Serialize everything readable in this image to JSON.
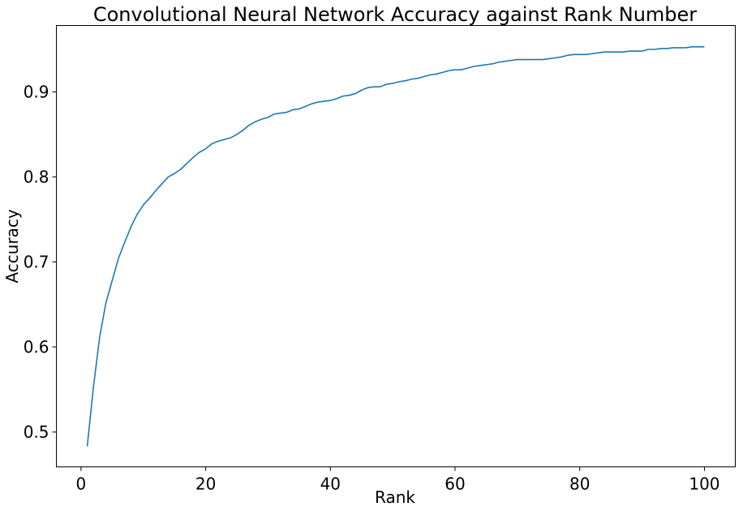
{
  "chart_data": {
    "type": "line",
    "title": "Convolutional Neural Network Accuracy against Rank Number",
    "xlabel": "Rank",
    "ylabel": "Accuracy",
    "xlim": [
      -3.95,
      104.95
    ],
    "ylim": [
      0.4589,
      0.9781
    ],
    "xticks": [
      0,
      20,
      40,
      60,
      80,
      100
    ],
    "yticks": [
      0.5,
      0.6,
      0.7,
      0.8,
      0.9
    ],
    "ytick_labels": [
      "0.5",
      "0.6",
      "0.7",
      "0.8",
      "0.9"
    ],
    "xtick_labels": [
      "0",
      "20",
      "40",
      "60",
      "80",
      "100"
    ],
    "grid": false,
    "line_color": "#1f77b4",
    "series": [
      {
        "x": [
          1,
          2,
          3,
          4,
          5,
          6,
          7,
          8,
          9,
          10,
          11,
          12,
          13,
          14,
          15,
          16,
          17,
          18,
          19,
          20,
          21,
          22,
          23,
          24,
          25,
          26,
          27,
          28,
          29,
          30,
          31,
          32,
          33,
          34,
          35,
          36,
          37,
          38,
          39,
          40,
          41,
          42,
          43,
          44,
          45,
          46,
          47,
          48,
          49,
          50,
          51,
          52,
          53,
          54,
          55,
          56,
          57,
          58,
          59,
          60,
          61,
          62,
          63,
          64,
          65,
          66,
          67,
          68,
          69,
          70,
          71,
          72,
          73,
          74,
          75,
          76,
          77,
          78,
          79,
          80,
          81,
          82,
          83,
          84,
          85,
          86,
          87,
          88,
          89,
          90,
          91,
          92,
          93,
          94,
          95,
          96,
          97,
          98,
          99,
          100
        ],
        "values": [
          0.483,
          0.553,
          0.612,
          0.652,
          0.678,
          0.704,
          0.723,
          0.741,
          0.756,
          0.767,
          0.775,
          0.784,
          0.792,
          0.8,
          0.804,
          0.809,
          0.816,
          0.823,
          0.829,
          0.833,
          0.839,
          0.842,
          0.844,
          0.846,
          0.85,
          0.855,
          0.861,
          0.865,
          0.868,
          0.87,
          0.874,
          0.875,
          0.876,
          0.879,
          0.88,
          0.883,
          0.886,
          0.888,
          0.889,
          0.89,
          0.892,
          0.895,
          0.896,
          0.898,
          0.902,
          0.905,
          0.906,
          0.906,
          0.909,
          0.91,
          0.912,
          0.913,
          0.915,
          0.916,
          0.918,
          0.92,
          0.921,
          0.923,
          0.925,
          0.926,
          0.926,
          0.928,
          0.93,
          0.931,
          0.932,
          0.933,
          0.935,
          0.936,
          0.937,
          0.938,
          0.938,
          0.938,
          0.938,
          0.938,
          0.939,
          0.94,
          0.941,
          0.943,
          0.944,
          0.944,
          0.944,
          0.945,
          0.946,
          0.947,
          0.947,
          0.947,
          0.947,
          0.948,
          0.948,
          0.948,
          0.95,
          0.95,
          0.951,
          0.951,
          0.952,
          0.952,
          0.952,
          0.953,
          0.953,
          0.953
        ]
      }
    ]
  }
}
